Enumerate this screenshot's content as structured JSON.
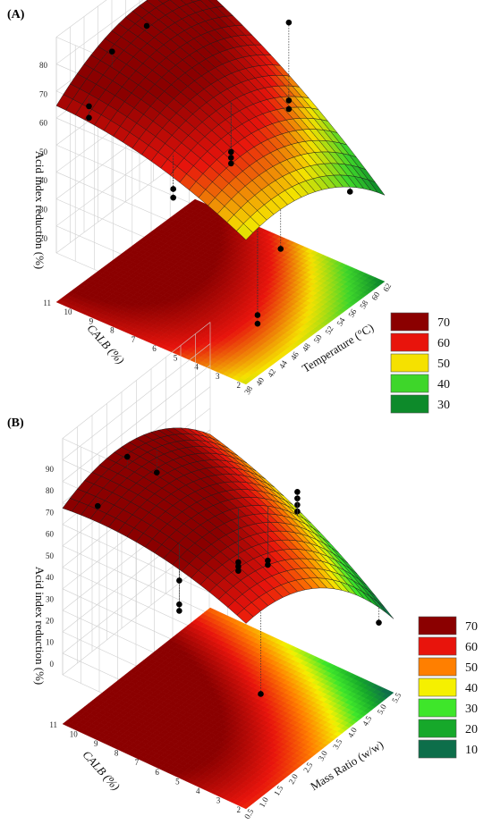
{
  "chart_data": [
    {
      "panel_label": "(A)",
      "type": "surface3d",
      "zlabel": "Acid index reduction (%)",
      "ylabel": "CALB (%)",
      "xlabel": "Temperature (°C)",
      "x_ticks": [
        "38",
        "40",
        "42",
        "44",
        "46",
        "48",
        "50",
        "52",
        "54",
        "56",
        "58",
        "60",
        "62"
      ],
      "y_ticks": [
        "2",
        "3",
        "4",
        "5",
        "6",
        "7",
        "8",
        "9",
        "10",
        "11"
      ],
      "z_ticks": [
        "20",
        "30",
        "40",
        "50",
        "60",
        "70",
        "80"
      ],
      "xlim": [
        38,
        62
      ],
      "ylim": [
        2,
        11
      ],
      "zlim": [
        15,
        80
      ],
      "surface": {
        "x0": 38,
        "x1": 62,
        "y0": 2,
        "y1": 11,
        "z_00": 48,
        "z_10": 30,
        "z_01": 66,
        "z_11": 76,
        "curv_x": 14,
        "curv_y": 8
      },
      "points": [
        {
          "x": 40,
          "y": 10,
          "z": 62
        },
        {
          "x": 40,
          "y": 10,
          "z": 66
        },
        {
          "x": 44,
          "y": 10,
          "z": 79
        },
        {
          "x": 50,
          "y": 10,
          "z": 79
        },
        {
          "x": 40,
          "y": 6,
          "z": 47
        },
        {
          "x": 40,
          "y": 6,
          "z": 50
        },
        {
          "x": 44,
          "y": 2,
          "z": 36
        },
        {
          "x": 50,
          "y": 6,
          "z": 44
        },
        {
          "x": 50,
          "y": 6,
          "z": 46
        },
        {
          "x": 50,
          "y": 6,
          "z": 48
        },
        {
          "x": 60,
          "y": 6,
          "z": 48
        },
        {
          "x": 60,
          "y": 6,
          "z": 51
        },
        {
          "x": 60,
          "y": 6,
          "z": 78
        },
        {
          "x": 40,
          "y": 2,
          "z": 16
        },
        {
          "x": 40,
          "y": 2,
          "z": 19
        },
        {
          "x": 56,
          "y": 2,
          "z": 38
        }
      ],
      "legend": [
        {
          "label": "70",
          "color": "#8b0000"
        },
        {
          "label": "60",
          "color": "#e8140c"
        },
        {
          "label": "50",
          "color": "#f5e100"
        },
        {
          "label": "40",
          "color": "#3ed62a"
        },
        {
          "label": "30",
          "color": "#0d8a2a"
        }
      ]
    },
    {
      "panel_label": "(B)",
      "type": "surface3d",
      "zlabel": "Acid index reduction (%)",
      "ylabel": "CALB (%)",
      "xlabel": "Mass Ratio (w/w)",
      "x_ticks": [
        "0.5",
        "1.0",
        "1.5",
        "2.0",
        "2.5",
        "3.0",
        "3.5",
        "4.0",
        "4.5",
        "5.0",
        "5.5"
      ],
      "y_ticks": [
        "2",
        "3",
        "4",
        "5",
        "6",
        "7",
        "8",
        "9",
        "10",
        "11"
      ],
      "z_ticks": [
        "0",
        "10",
        "20",
        "30",
        "40",
        "50",
        "60",
        "70",
        "80",
        "90"
      ],
      "xlim": [
        0.5,
        5.5
      ],
      "ylim": [
        2,
        11
      ],
      "zlim": [
        -5,
        90
      ],
      "surface": {
        "x0": 0.5,
        "x1": 5.5,
        "y0": 2,
        "y1": 11,
        "z_00": 58,
        "z_10": 10,
        "z_01": 72,
        "z_11": 56,
        "curv_x": 24,
        "curv_y": 12
      },
      "points": [
        {
          "x": 1.0,
          "y": 10,
          "z": 72
        },
        {
          "x": 2.0,
          "y": 10,
          "z": 84
        },
        {
          "x": 1.0,
          "y": 6,
          "z": 41
        },
        {
          "x": 1.0,
          "y": 6,
          "z": 44
        },
        {
          "x": 1.0,
          "y": 6,
          "z": 55
        },
        {
          "x": 1.0,
          "y": 2,
          "z": 20
        },
        {
          "x": 3.0,
          "y": 6,
          "z": 38
        },
        {
          "x": 3.0,
          "y": 6,
          "z": 40
        },
        {
          "x": 3.0,
          "y": 6,
          "z": 42
        },
        {
          "x": 4.0,
          "y": 6,
          "z": 30
        },
        {
          "x": 4.0,
          "y": 6,
          "z": 32
        },
        {
          "x": 5.0,
          "y": 6,
          "z": 44
        },
        {
          "x": 5.0,
          "y": 6,
          "z": 47
        },
        {
          "x": 5.0,
          "y": 6,
          "z": 50
        },
        {
          "x": 5.0,
          "y": 6,
          "z": 53
        },
        {
          "x": 5.0,
          "y": 2,
          "z": 10
        },
        {
          "x": 3.0,
          "y": 10,
          "z": 66
        }
      ],
      "legend": [
        {
          "label": "70",
          "color": "#8b0000"
        },
        {
          "label": "60",
          "color": "#e8140c"
        },
        {
          "label": "50",
          "color": "#ff7f00"
        },
        {
          "label": "40",
          "color": "#f5f000"
        },
        {
          "label": "30",
          "color": "#3ee62a"
        },
        {
          "label": "20",
          "color": "#16a82a"
        },
        {
          "label": "10",
          "color": "#0d6e4a"
        }
      ]
    }
  ]
}
